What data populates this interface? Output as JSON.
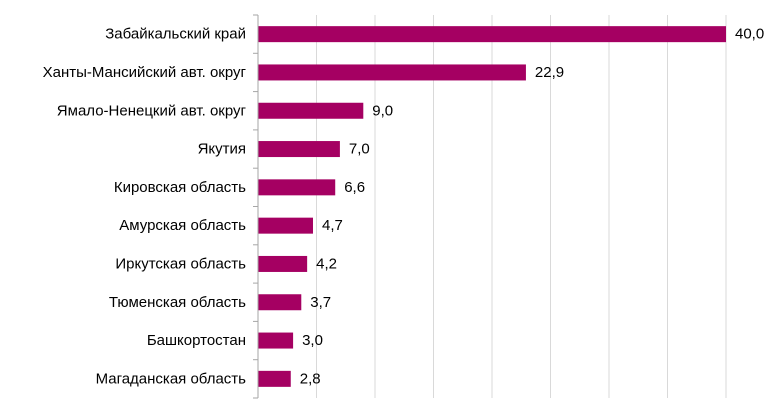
{
  "chart_data": {
    "type": "bar",
    "orientation": "horizontal",
    "categories": [
      "Забайкальский край",
      "Ханты-Мансийский авт. округ",
      "Ямало-Ненецкий авт. округ",
      "Якутия",
      "Кировская область",
      "Амурская область",
      "Иркутская область",
      "Тюменская область",
      "Башкортостан",
      "Магаданская область"
    ],
    "values": [
      40.0,
      22.9,
      9.0,
      7.0,
      6.6,
      4.7,
      4.2,
      3.7,
      3.0,
      2.8
    ],
    "value_labels": [
      "40,0",
      "22,9",
      "9,0",
      "7,0",
      "6,6",
      "4,7",
      "4,2",
      "3,7",
      "3,0",
      "2,8"
    ],
    "xlim": [
      0,
      44
    ],
    "grid": true,
    "bar_color": "#a50062",
    "grid_color": "#d9d9d9",
    "axis_color": "#a6a6a6"
  }
}
